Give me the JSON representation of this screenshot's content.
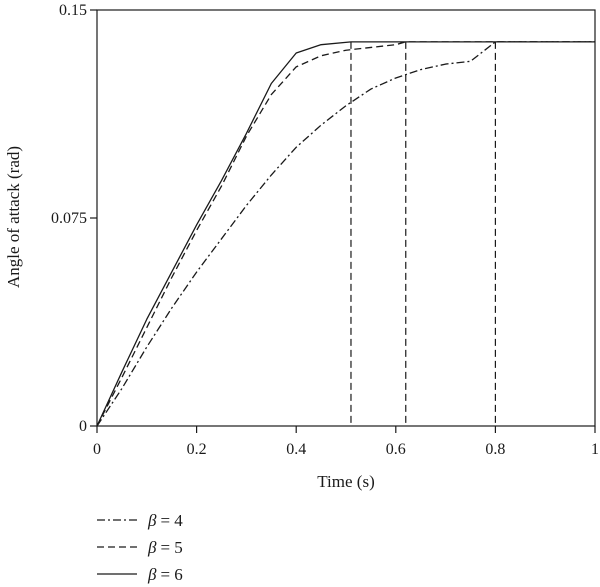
{
  "chart_data": {
    "type": "line",
    "xlabel": "Time (s)",
    "ylabel": "Angle of attack (rad)",
    "xlim": [
      0,
      1
    ],
    "ylim": [
      0,
      0.15
    ],
    "xticks": [
      "0",
      "0.2",
      "0.4",
      "0.6",
      "0.8",
      "1"
    ],
    "yticks": [
      "0",
      "0.075",
      "0.15"
    ],
    "xtick_values": [
      0,
      0.2,
      0.4,
      0.6,
      0.8,
      1
    ],
    "ytick_values": [
      0,
      0.075,
      0.15
    ],
    "grid": false,
    "legend_position": "bottom-left",
    "series": [
      {
        "name": "β = 4",
        "legend_symbol": "β",
        "legend_value": "= 4",
        "style": "dashdot",
        "x": [
          0,
          0.05,
          0.1,
          0.15,
          0.2,
          0.25,
          0.3,
          0.35,
          0.4,
          0.45,
          0.5,
          0.55,
          0.6,
          0.65,
          0.7,
          0.75,
          0.8,
          1.0
        ],
        "y": [
          0,
          0.0135,
          0.0285,
          0.0425,
          0.0555,
          0.0675,
          0.0795,
          0.0905,
          0.1005,
          0.1085,
          0.1155,
          0.1215,
          0.1255,
          0.1285,
          0.1305,
          0.1315,
          0.1385,
          0.1385
        ]
      },
      {
        "name": "β = 5",
        "legend_symbol": "β",
        "legend_value": "= 5",
        "style": "dashed",
        "x": [
          0,
          0.05,
          0.1,
          0.15,
          0.2,
          0.25,
          0.3,
          0.35,
          0.4,
          0.45,
          0.5,
          0.55,
          0.6,
          0.62,
          1.0
        ],
        "y": [
          0,
          0.0175,
          0.0355,
          0.0535,
          0.0705,
          0.0865,
          0.1045,
          0.1195,
          0.1295,
          0.1335,
          0.1355,
          0.1365,
          0.1375,
          0.1385,
          0.1385
        ]
      },
      {
        "name": "β = 6",
        "legend_symbol": "β",
        "legend_value": "= 6",
        "style": "solid",
        "x": [
          0,
          0.05,
          0.1,
          0.15,
          0.2,
          0.25,
          0.3,
          0.35,
          0.4,
          0.45,
          0.51,
          1.0
        ],
        "y": [
          0,
          0.0195,
          0.0385,
          0.0555,
          0.0725,
          0.0885,
          0.1055,
          0.1235,
          0.1345,
          0.1375,
          0.1385,
          0.1385
        ]
      }
    ],
    "vertical_markers": [
      0.51,
      0.62,
      0.8
    ]
  }
}
